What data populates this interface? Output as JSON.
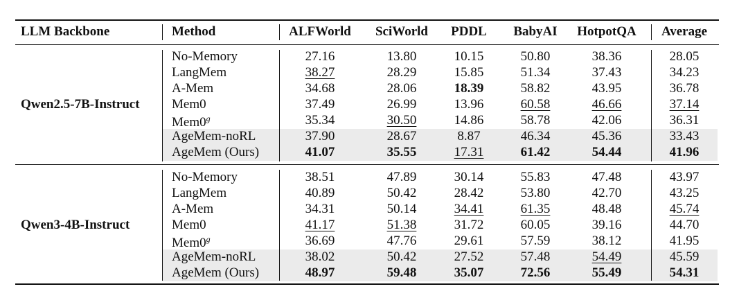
{
  "table": {
    "header": [
      "LLM Backbone",
      "Method",
      "ALFWorld",
      "SciWorld",
      "PDDL",
      "BabyAI",
      "HotpotQA",
      "Average"
    ],
    "groups": [
      {
        "backbone": "Qwen2.5-7B-Instruct",
        "rows": [
          {
            "method": "No-Memory",
            "cells": [
              "27.16",
              "13.80",
              "10.15",
              "50.80",
              "38.36",
              "28.05"
            ]
          },
          {
            "method": "LangMem",
            "cells": [
              {
                "text": "38.27",
                "style": "underline"
              },
              "28.29",
              "15.85",
              "51.34",
              "37.43",
              "34.23"
            ]
          },
          {
            "method": "A-Mem",
            "cells": [
              "34.68",
              "28.06",
              {
                "text": "18.39",
                "style": "bold"
              },
              "58.82",
              "43.95",
              "36.78"
            ]
          },
          {
            "method": "Mem0",
            "cells": [
              "37.49",
              "26.99",
              "13.96",
              {
                "text": "60.58",
                "style": "underline"
              },
              {
                "text": "46.66",
                "style": "underline"
              },
              {
                "text": "37.14",
                "style": "underline"
              }
            ]
          },
          {
            "method": {
              "text": "Mem0",
              "sup": "g"
            },
            "cells": [
              "35.34",
              {
                "text": "30.50",
                "style": "underline"
              },
              "14.86",
              "58.78",
              "42.06",
              "36.31"
            ]
          },
          {
            "method": "AgeMem-noRL",
            "shaded": true,
            "cells": [
              "37.90",
              "28.67",
              "8.87",
              "46.34",
              "45.36",
              "33.43"
            ]
          },
          {
            "method": "AgeMem (Ours)",
            "shaded": true,
            "cells": [
              {
                "text": "41.07",
                "style": "bold"
              },
              {
                "text": "35.55",
                "style": "bold"
              },
              {
                "text": "17.31",
                "style": "underline"
              },
              {
                "text": "61.42",
                "style": "bold"
              },
              {
                "text": "54.44",
                "style": "bold"
              },
              {
                "text": "41.96",
                "style": "bold"
              }
            ]
          }
        ]
      },
      {
        "backbone": "Qwen3-4B-Instruct",
        "rows": [
          {
            "method": "No-Memory",
            "cells": [
              "38.51",
              "47.89",
              "30.14",
              "55.83",
              "47.48",
              "43.97"
            ]
          },
          {
            "method": "LangMem",
            "cells": [
              "40.89",
              "50.42",
              "28.42",
              "53.80",
              "42.70",
              "43.25"
            ]
          },
          {
            "method": "A-Mem",
            "cells": [
              "34.31",
              "50.14",
              {
                "text": "34.41",
                "style": "underline"
              },
              {
                "text": "61.35",
                "style": "underline"
              },
              "48.48",
              {
                "text": "45.74",
                "style": "underline"
              }
            ]
          },
          {
            "method": "Mem0",
            "cells": [
              {
                "text": "41.17",
                "style": "underline"
              },
              {
                "text": "51.38",
                "style": "underline"
              },
              "31.72",
              "60.05",
              "39.16",
              "44.70"
            ]
          },
          {
            "method": {
              "text": "Mem0",
              "sup": "g"
            },
            "cells": [
              "36.69",
              "47.76",
              "29.61",
              "57.59",
              "38.12",
              "41.95"
            ]
          },
          {
            "method": "AgeMem-noRL",
            "shaded": true,
            "cells": [
              "38.02",
              "50.42",
              "27.52",
              "57.48",
              {
                "text": "54.49",
                "style": "underline"
              },
              "45.59"
            ]
          },
          {
            "method": "AgeMem (Ours)",
            "shaded": true,
            "cells": [
              {
                "text": "48.97",
                "style": "bold"
              },
              {
                "text": "59.48",
                "style": "bold"
              },
              {
                "text": "35.07",
                "style": "bold"
              },
              {
                "text": "72.56",
                "style": "bold"
              },
              {
                "text": "55.49",
                "style": "bold"
              },
              {
                "text": "54.31",
                "style": "bold"
              }
            ]
          }
        ]
      }
    ]
  }
}
